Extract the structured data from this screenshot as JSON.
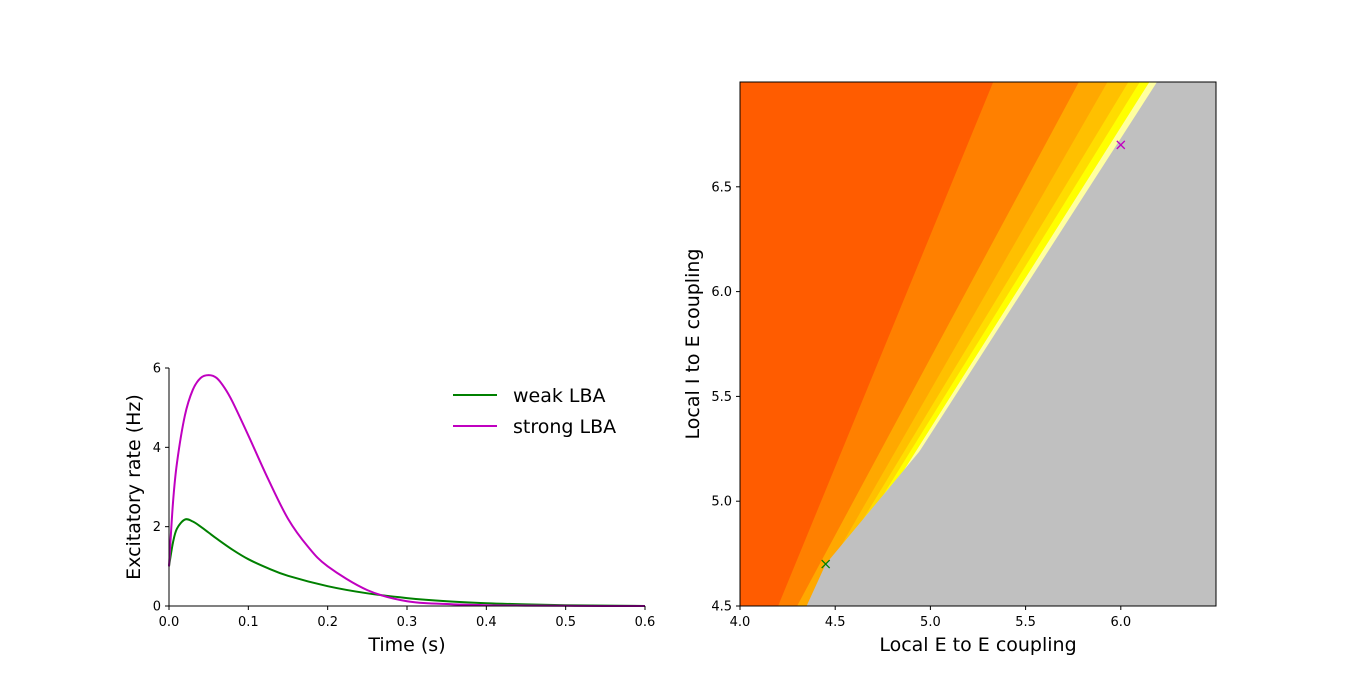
{
  "chart_data": [
    {
      "type": "line",
      "title": "",
      "xlabel": "Time (s)",
      "ylabel": "Excitatory rate (Hz)",
      "xlim": [
        0.0,
        0.6
      ],
      "ylim": [
        0,
        6
      ],
      "xticks": [
        "0.0",
        "0.1",
        "0.2",
        "0.3",
        "0.4",
        "0.5",
        "0.6"
      ],
      "yticks": [
        "0",
        "2",
        "4",
        "6"
      ],
      "grid": false,
      "legend_position": "upper-right",
      "series": [
        {
          "name": "weak LBA",
          "color": "#008000",
          "x": [
            0.0,
            0.005,
            0.01,
            0.02,
            0.03,
            0.04,
            0.05,
            0.06,
            0.08,
            0.1,
            0.125,
            0.15,
            0.2,
            0.25,
            0.3,
            0.35,
            0.4,
            0.45,
            0.5,
            0.55,
            0.6
          ],
          "y": [
            1.0,
            1.6,
            1.95,
            2.18,
            2.13,
            2.0,
            1.85,
            1.7,
            1.42,
            1.18,
            0.95,
            0.76,
            0.5,
            0.32,
            0.2,
            0.12,
            0.07,
            0.04,
            0.02,
            0.01,
            0.0
          ]
        },
        {
          "name": "strong LBA",
          "color": "#c000c0",
          "x": [
            0.0,
            0.005,
            0.01,
            0.02,
            0.03,
            0.04,
            0.05,
            0.06,
            0.07,
            0.08,
            0.1,
            0.125,
            0.15,
            0.175,
            0.2,
            0.25,
            0.3,
            0.35,
            0.4,
            0.45,
            0.5,
            0.55,
            0.6
          ],
          "y": [
            1.0,
            2.6,
            3.6,
            4.8,
            5.45,
            5.75,
            5.82,
            5.75,
            5.5,
            5.15,
            4.3,
            3.2,
            2.2,
            1.5,
            1.0,
            0.4,
            0.12,
            0.05,
            0.02,
            0.01,
            0.005,
            0.0,
            0.0
          ]
        }
      ]
    },
    {
      "type": "heatmap",
      "title": "",
      "xlabel": "Local E to E coupling",
      "ylabel": "Local I to E coupling",
      "xlim": [
        4.0,
        6.5
      ],
      "ylim": [
        4.5,
        7.0
      ],
      "xticks": [
        "4.0",
        "4.5",
        "5.0",
        "5.5",
        "6.0"
      ],
      "yticks": [
        "4.5",
        "5.0",
        "5.5",
        "6.0",
        "6.5"
      ],
      "grid": false,
      "regions": [
        {
          "color": "#ff5c00",
          "x_at_ymin": 4.2,
          "x_at_ymax": 5.33
        },
        {
          "color": "#ff8000",
          "x_at_ymin": 4.3,
          "x_at_ymax": 5.78
        },
        {
          "color": "#ffa800",
          "x_at_ymin": 4.35,
          "x_at_ymax": 5.93
        },
        {
          "color": "#ffc000",
          "x_at_ymin": 4.37,
          "x_at_ymax": 6.04
        },
        {
          "color": "#ffdc00",
          "x_at_ymin": 4.39,
          "x_at_ymax": 6.1
        },
        {
          "color": "#ffff00",
          "x_at_ymin": 4.41,
          "x_at_ymax": 6.15
        },
        {
          "color": "#ffffa0",
          "x_at_ymin": 4.42,
          "x_at_ymax": 6.19
        }
      ],
      "background_color": "#c0c0c0",
      "boundary": [
        [
          4.35,
          4.5
        ],
        [
          4.45,
          4.7
        ],
        [
          5.0,
          5.3
        ],
        [
          5.5,
          5.95
        ],
        [
          6.0,
          6.7
        ],
        [
          6.22,
          7.0
        ]
      ],
      "markers": [
        {
          "x": 4.45,
          "y": 4.7,
          "color": "#008000",
          "symbol": "x"
        },
        {
          "x": 6.0,
          "y": 6.7,
          "color": "#c000c0",
          "symbol": "x"
        }
      ]
    }
  ]
}
